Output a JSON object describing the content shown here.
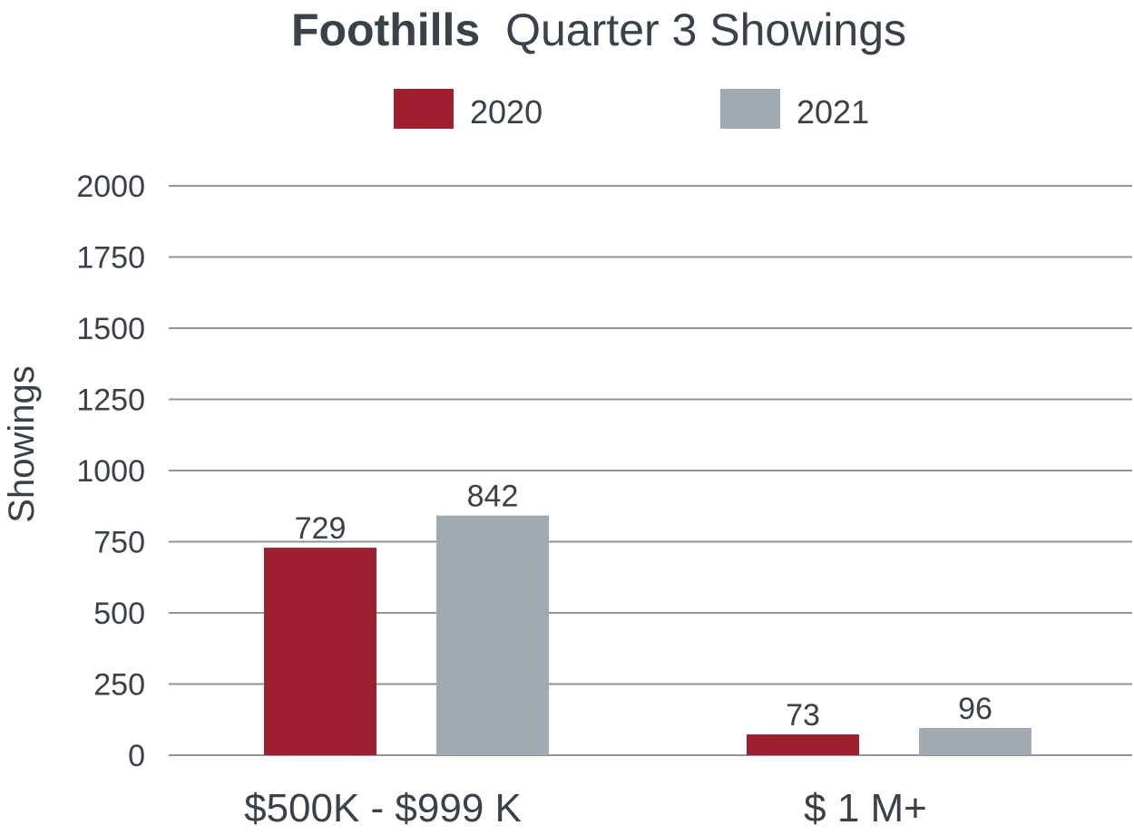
{
  "chart_data": {
    "type": "bar",
    "title_bold": "Foothills",
    "title_rest": "Quarter 3 Showings",
    "xlabel": "",
    "ylabel": "Showings",
    "categories": [
      "$500K - $999 K",
      "$ 1 M+"
    ],
    "series": [
      {
        "name": "2020",
        "color": "#9e1f30",
        "values": [
          729,
          73
        ]
      },
      {
        "name": "2021",
        "color": "#a1aab0",
        "values": [
          842,
          96
        ]
      }
    ],
    "ylim": [
      0,
      2000
    ],
    "yticks": [
      0,
      250,
      500,
      750,
      1000,
      1250,
      1500,
      1750,
      2000
    ],
    "grid": true,
    "legend_position": "top-center",
    "gridline_color": "#8f969b"
  }
}
